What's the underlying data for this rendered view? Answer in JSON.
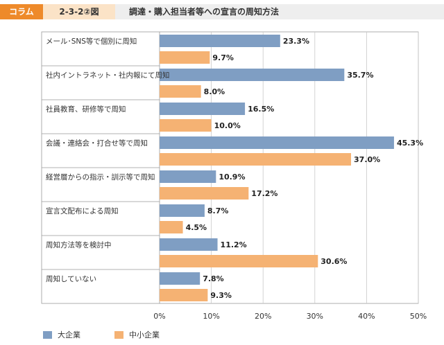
{
  "header": {
    "column_label": "コラム",
    "figure_label": "2-3-2②図",
    "title": "調達・購入担当者等への宣言の周知方法"
  },
  "colors": {
    "large": "#7f9ec3",
    "sme": "#f5b273",
    "header_accent": "#ee8a2a",
    "header_fig_bg": "#fbe3c7",
    "header_title_bg": "#eeeeee"
  },
  "chart_data": {
    "type": "bar",
    "orientation": "horizontal",
    "categories": [
      "メール･SNS等で個別に周知",
      "社内イントラネット・社内報にて周知",
      "社員教育、研修等で周知",
      "会議・連絡会・打合せ等で周知",
      "経営層からの指示・訓示等で周知",
      "宣言文配布による周知",
      "周知方法等を検討中",
      "周知していない"
    ],
    "series": [
      {
        "name": "大企業",
        "values": [
          23.3,
          35.7,
          16.5,
          45.3,
          10.9,
          8.7,
          11.2,
          7.8
        ]
      },
      {
        "name": "中小企業",
        "values": [
          9.7,
          8.0,
          10.0,
          37.0,
          17.2,
          4.5,
          30.6,
          9.3
        ]
      }
    ],
    "value_labels": [
      [
        "23.3%",
        "35.7%",
        "16.5%",
        "45.3%",
        "10.9%",
        "8.7%",
        "11.2%",
        "7.8%"
      ],
      [
        "9.7%",
        "8.0%",
        "10.0%",
        "37.0%",
        "17.2%",
        "4.5%",
        "30.6%",
        "9.3%"
      ]
    ],
    "xlim": [
      0,
      50
    ],
    "xticks": [
      "0%",
      "10%",
      "20%",
      "30%",
      "40%",
      "50%"
    ],
    "grid": true,
    "legend_position": "bottom-left"
  }
}
